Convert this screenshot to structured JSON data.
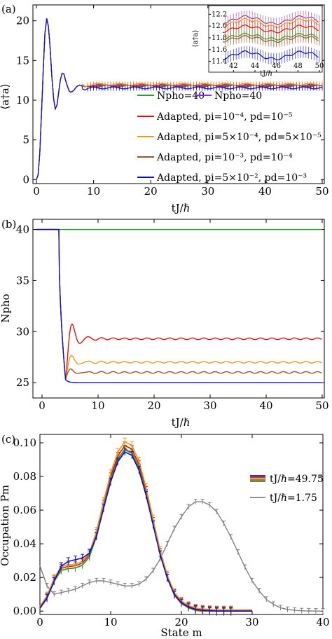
{
  "colors": {
    "green": "#2a9d2a",
    "purple": "#8a2be2",
    "red": "#dd1111",
    "orange": "#f0961e",
    "brown": "#a0522d",
    "blue": "#1010cc",
    "gray": "#808080"
  },
  "chart_data": [
    {
      "type": "line",
      "panel_label": "(a)",
      "xlabel": "tJ/ℏ",
      "ylabel": "⟨a†a⟩",
      "xlim": [
        0,
        50
      ],
      "ylim": [
        -0.5,
        22
      ],
      "xticks": [
        "0",
        "10",
        "20",
        "30",
        "40",
        "50"
      ],
      "yticks": [
        "0",
        "5",
        "10",
        "15",
        "20"
      ],
      "legend_position": "lower-right",
      "legend": [
        {
          "label": "Npho=40",
          "color_key": "green"
        },
        {
          "label": "Npho=40",
          "color_key": "purple"
        },
        {
          "label": "Adapted, pi=10⁻⁴, pd=10⁻⁵",
          "color_key": "red"
        },
        {
          "label": "Adapted, pi=5×10⁻⁴, pd=5×10⁻⁵",
          "color_key": "orange"
        },
        {
          "label": "Adapted, pi=10⁻³, pd=10⁻⁴",
          "color_key": "brown"
        },
        {
          "label": "Adapted, pi=5×10⁻², pd=10⁻³",
          "color_key": "blue"
        }
      ],
      "main_curve": {
        "x": [
          0,
          0.3,
          0.6,
          0.9,
          1.2,
          1.5,
          1.8,
          2.1,
          2.4,
          2.7,
          3.0,
          3.3,
          3.6,
          3.9,
          4.2,
          4.5,
          4.8,
          5.1,
          5.4,
          5.7,
          6.0,
          6.5,
          7.0,
          7.5,
          8.0,
          8.5,
          9.0,
          10,
          12,
          15,
          20,
          25,
          30,
          35,
          40,
          45,
          50
        ],
        "y": [
          0,
          0.6,
          3.5,
          8.5,
          14.0,
          18.5,
          20.3,
          19.3,
          16.5,
          13.0,
          10.2,
          8.9,
          9.4,
          11.0,
          12.6,
          13.4,
          13.3,
          12.5,
          11.8,
          11.2,
          11.0,
          11.2,
          11.7,
          11.9,
          11.8,
          11.6,
          11.7,
          11.8,
          11.8,
          11.8,
          11.8,
          11.8,
          11.8,
          11.8,
          11.8,
          11.8,
          11.8
        ]
      },
      "inset": {
        "xlabel": "tJ/ℏ",
        "ylabel": "⟨a†a⟩",
        "xlim": [
          41,
          50
        ],
        "ylim": [
          11.3,
          12.3
        ],
        "xticks": [
          "42",
          "44",
          "46",
          "48",
          "50"
        ],
        "yticks": [
          "11.4",
          "11.6",
          "11.8",
          "12.0",
          "12.2"
        ],
        "series": [
          {
            "color_key": "purple",
            "level": 12.1,
            "amp": 0.06
          },
          {
            "color_key": "orange",
            "level": 12.05,
            "amp": 0.06
          },
          {
            "color_key": "red",
            "level": 11.95,
            "amp": 0.05
          },
          {
            "color_key": "green",
            "level": 11.82,
            "amp": 0.04
          },
          {
            "color_key": "brown",
            "level": 11.78,
            "amp": 0.04
          },
          {
            "color_key": "blue",
            "level": 11.5,
            "amp": 0.06
          }
        ]
      }
    },
    {
      "type": "line",
      "panel_label": "(b)",
      "xlabel": "tJ/ℏ",
      "ylabel": "Npho",
      "xlim": [
        -1,
        50
      ],
      "ylim": [
        23.5,
        41
      ],
      "xticks": [
        "0",
        "10",
        "20",
        "30",
        "40",
        "50"
      ],
      "yticks": [
        "25",
        "30",
        "35",
        "40"
      ],
      "series": [
        {
          "color_key": "green",
          "final": 40
        },
        {
          "color_key": "red",
          "final": 29.3,
          "peak": 31.4
        },
        {
          "color_key": "orange",
          "final": 27.0,
          "peak": 29.2
        },
        {
          "color_key": "brown",
          "final": 26.0,
          "peak": 28.0
        },
        {
          "color_key": "blue",
          "final": 25.0,
          "peak": 25.0
        }
      ]
    },
    {
      "type": "line",
      "panel_label": "(c)",
      "xlabel": "State m",
      "ylabel": "Occupation Pm",
      "xlim": [
        0,
        40
      ],
      "ylim": [
        -0.002,
        0.105
      ],
      "xticks": [
        "0",
        "10",
        "20",
        "30",
        "40"
      ],
      "yticks": [
        "0.00",
        "0.02",
        "0.04",
        "0.06",
        "0.08",
        "0.10"
      ],
      "legend_position": "top-right",
      "legend": [
        {
          "label": "tJ/ℏ=49.75",
          "color_key": "blue"
        },
        {
          "label": "tJ/ℏ=1.75",
          "color_key": "gray"
        }
      ],
      "gray_curve": {
        "x": [
          0,
          1,
          2,
          3,
          4,
          5,
          6,
          7,
          8,
          9,
          10,
          11,
          12,
          13,
          14,
          15,
          16,
          17,
          18,
          19,
          20,
          21,
          22,
          23,
          24,
          25,
          26,
          27,
          28,
          29,
          30,
          31,
          32,
          33,
          34,
          35,
          36,
          37,
          38,
          39,
          40
        ],
        "y": [
          0.027,
          0.015,
          0.01,
          0.011,
          0.012,
          0.013,
          0.015,
          0.017,
          0.018,
          0.018,
          0.017,
          0.016,
          0.015,
          0.015,
          0.016,
          0.019,
          0.024,
          0.031,
          0.04,
          0.049,
          0.056,
          0.062,
          0.065,
          0.065,
          0.063,
          0.059,
          0.052,
          0.044,
          0.035,
          0.026,
          0.018,
          0.012,
          0.007,
          0.004,
          0.002,
          0.001,
          0.0005,
          0.0002,
          0.0001,
          0,
          0
        ]
      },
      "blue_curve": {
        "x": [
          0,
          1,
          2,
          3,
          4,
          5,
          6,
          7,
          8,
          9,
          10,
          11,
          12,
          13,
          14,
          15,
          16,
          17,
          18,
          19,
          20,
          21,
          22,
          23,
          24,
          25,
          26,
          27,
          28,
          29,
          30
        ],
        "y": [
          0.002,
          0.008,
          0.018,
          0.027,
          0.03,
          0.031,
          0.032,
          0.035,
          0.045,
          0.062,
          0.078,
          0.09,
          0.096,
          0.094,
          0.085,
          0.07,
          0.052,
          0.034,
          0.02,
          0.01,
          0.005,
          0.0025,
          0.001,
          0.0005,
          0.0002,
          0,
          0,
          0,
          0,
          0,
          0
        ]
      }
    }
  ]
}
